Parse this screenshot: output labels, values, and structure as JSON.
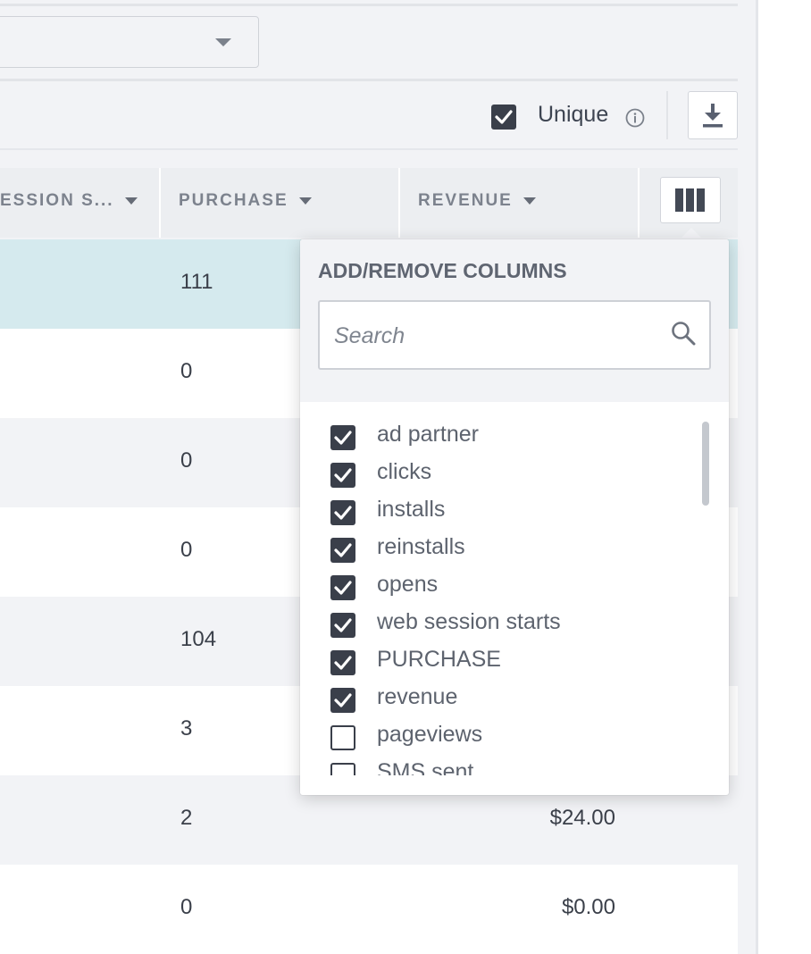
{
  "toolbar": {
    "unique_label": "Unique"
  },
  "table": {
    "headers": {
      "session_starts": "ESSION S...",
      "purchase": "PURCHASE",
      "revenue": "REVENUE"
    },
    "rows": [
      {
        "purchase": "111",
        "revenue": ""
      },
      {
        "purchase": "0",
        "revenue": ""
      },
      {
        "purchase": "0",
        "revenue": ""
      },
      {
        "purchase": "0",
        "revenue": ""
      },
      {
        "purchase": "104",
        "revenue": ""
      },
      {
        "purchase": "3",
        "revenue": ""
      },
      {
        "purchase": "2",
        "revenue": "$24.00"
      },
      {
        "purchase": "0",
        "revenue": "$0.00"
      }
    ]
  },
  "columns_popover": {
    "title": "ADD/REMOVE COLUMNS",
    "search_placeholder": "Search",
    "items": [
      {
        "label": "ad partner",
        "checked": true
      },
      {
        "label": "clicks",
        "checked": true
      },
      {
        "label": "installs",
        "checked": true
      },
      {
        "label": "reinstalls",
        "checked": true
      },
      {
        "label": "opens",
        "checked": true
      },
      {
        "label": "web session starts",
        "checked": true
      },
      {
        "label": "PURCHASE",
        "checked": true
      },
      {
        "label": "revenue",
        "checked": true
      },
      {
        "label": "pageviews",
        "checked": false
      },
      {
        "label": "SMS sent",
        "checked": false
      }
    ]
  },
  "icons": {
    "unique_checkbox": "checkbox-checked-icon",
    "info": "info-icon",
    "download": "download-icon",
    "columns": "columns-icon",
    "search": "search-icon",
    "dropdown": "chevron-down-icon"
  },
  "colors": {
    "selected_row": "#d5eaee",
    "checkbox": "#3a3f4a",
    "header_text": "#7c828d"
  }
}
